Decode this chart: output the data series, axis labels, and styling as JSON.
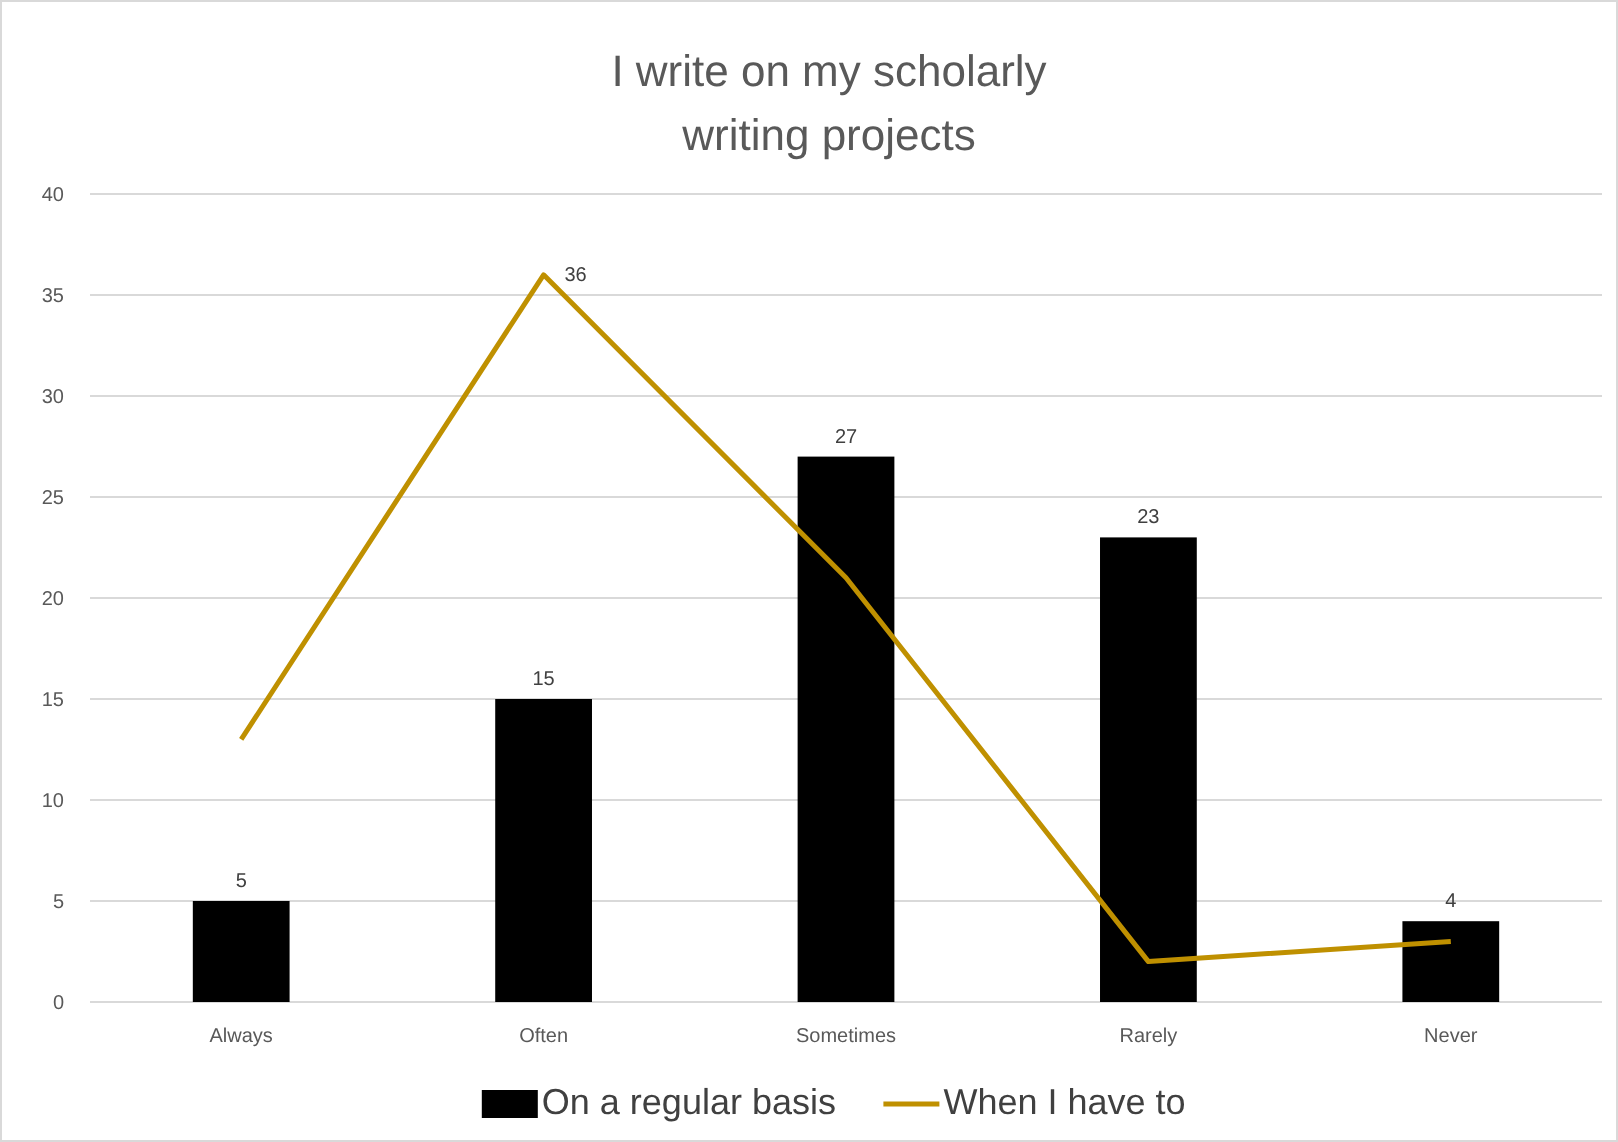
{
  "chart_data": {
    "type": "bar",
    "title": "I write on my scholarly writing projects",
    "categories": [
      "Always",
      "Often",
      "Sometimes",
      "Rarely",
      "Never"
    ],
    "series": [
      {
        "name": "On a regular basis",
        "color": "#000000",
        "values": [
          5,
          15,
          27,
          23,
          4
        ],
        "value_labels": [
          "5",
          "15",
          "27",
          "23",
          "4"
        ]
      },
      {
        "name": "When I have to",
        "type": "line",
        "color": "#bf9000",
        "values": [
          13,
          36,
          21,
          2,
          3
        ],
        "value_labels": [
          null,
          "36",
          null,
          null,
          null
        ]
      }
    ],
    "ylim": [
      0,
      40
    ],
    "yticks": [
      0,
      5,
      10,
      15,
      20,
      25,
      30,
      35,
      40
    ],
    "grid": "y",
    "legend": "bottom",
    "marker": "none"
  }
}
